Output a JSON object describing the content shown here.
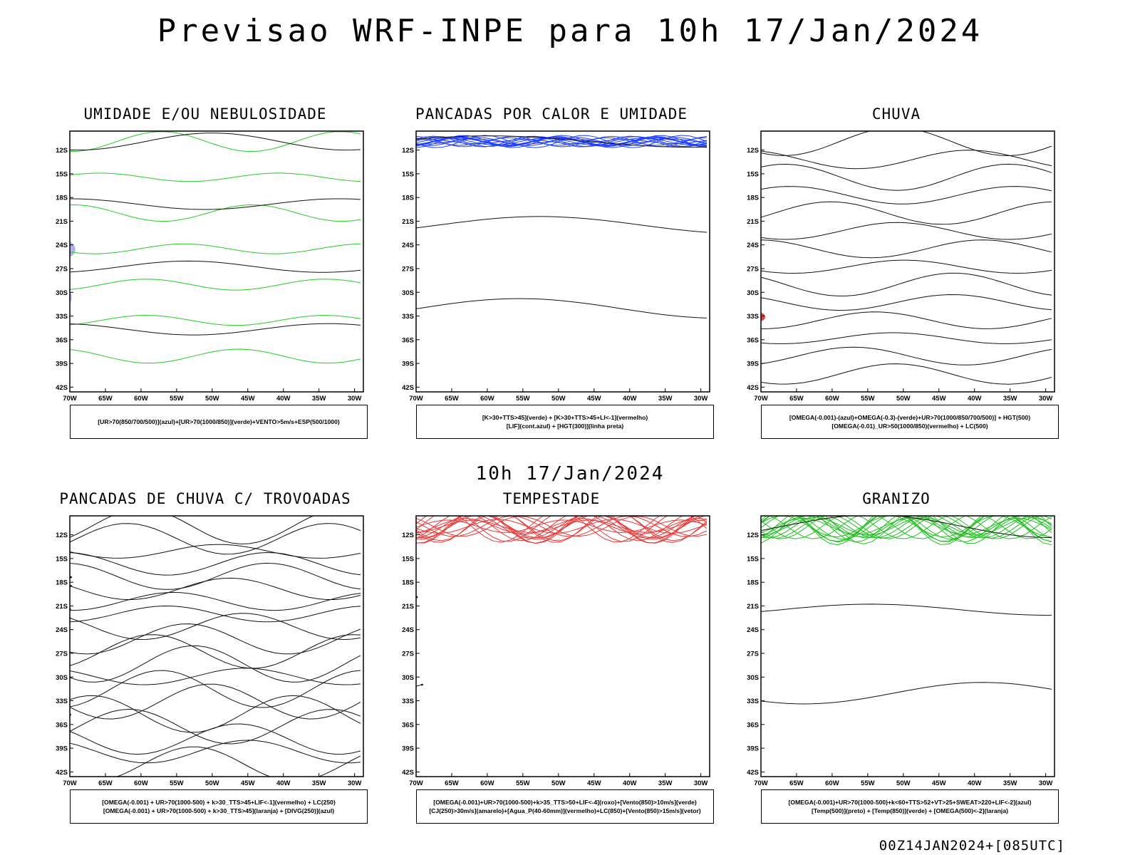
{
  "header": {
    "title": "Previsao WRF-INPE  para 10h 17/Jan/2024"
  },
  "middle_label": "10h 17/Jan/2024",
  "footer": {
    "stamp": "00Z14JAN2024+[085UTC]"
  },
  "axes": {
    "lat_ticks": [
      "12S",
      "15S",
      "18S",
      "21S",
      "24S",
      "27S",
      "30S",
      "33S",
      "36S",
      "39S",
      "42S"
    ],
    "lon_ticks": [
      "70W",
      "65W",
      "60W",
      "55W",
      "50W",
      "45W",
      "40W",
      "35W",
      "30W"
    ]
  },
  "panels": [
    {
      "title": "UMIDADE E/OU NEBULOSIDADE",
      "legend": [
        "[UR>70(850/700/500)](azul)+[UR>70(1000/850)](verde)+VENTO>5m/s+ESP(500/1000)"
      ]
    },
    {
      "title": "PANCADAS POR CALOR E UMIDADE",
      "legend": [
        "[K>30+TTS>45](verde) + [K>30+TTS>45+LI<-1](vermelho)",
        "[LIF](cont.azul) + [HGT(300)](linha preta)"
      ]
    },
    {
      "title": "CHUVA",
      "legend": [
        "[OMEGA(-0.001)-(azul)+OMEGA(-0.3)-(verde)+UR>70(1000/850/700/500)] + HGT(500)",
        "[OMEGA(-0.01)_UR>50(1000/850)(vermelho) + LC(500)"
      ]
    },
    {
      "title": "PANCADAS DE CHUVA C/ TROVOADAS",
      "legend": [
        "[OMEGA(-0.001) + UR>70(1000-500) + k>30_TTS>45+LIF<-1](vermelho) + LC(250)",
        "[OMEGA(-0.001) + UR>70(1000-500) + k>30_TTS>45](laranja) + [DIVG(250)](azul)"
      ]
    },
    {
      "title": "TEMPESTADE",
      "legend": [
        "[OMEGA(-0.001)+UR>70(1000-500)+k>35_TTS>50+LIF<-4](roxo)+[Vento(850)>10m/s](verde)",
        "[CJ(250)>30m/s](amarelo)+[Agua_P(40-60mm)](vermelho)+LC(850)+[Vento(850)>15m/s](vetor)"
      ]
    },
    {
      "title": "GRANIZO",
      "legend": [
        "[OMEGA(-0.001)+UR>70(1000-500)+k<60+TTS>52+VT>25+SWEAT>220+LIF<-2](azul)",
        "[Temp(500)](preto) + [Temp(850)](verde) + [OMEGA(500)<-2](laranja)"
      ]
    }
  ]
}
